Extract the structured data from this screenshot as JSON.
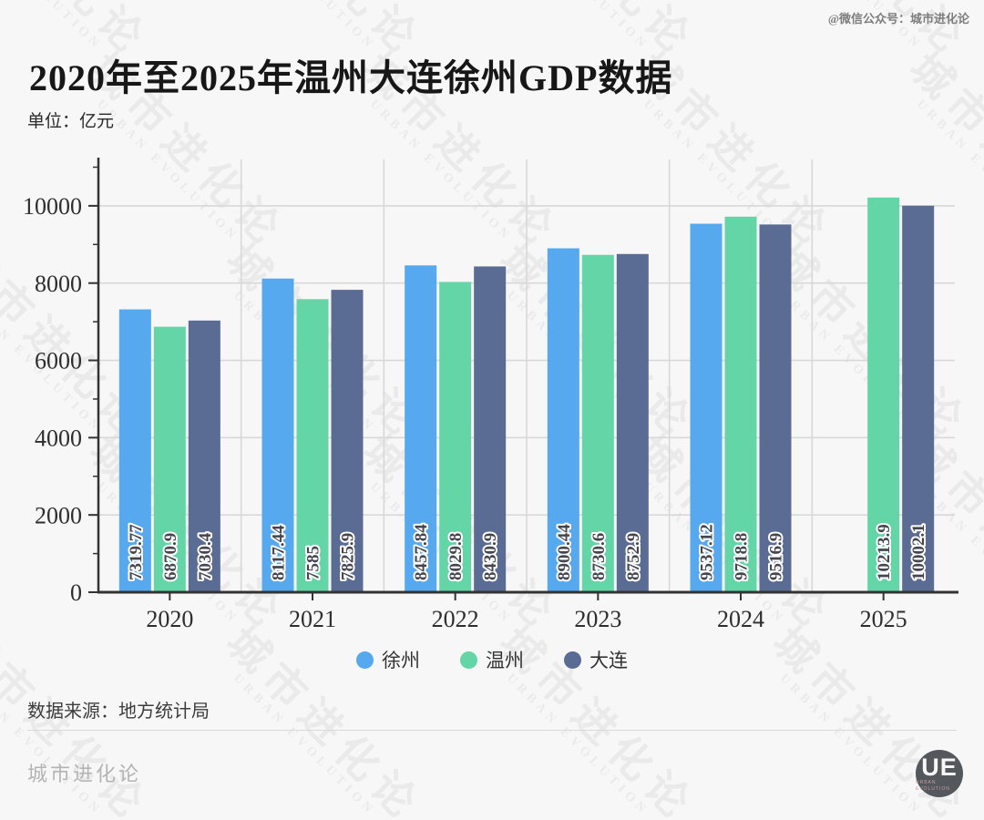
{
  "header": {
    "account_note": "@微信公众号：城市进化论",
    "title": "2020年至2025年温州大连徐州GDP数据",
    "unit_label": "单位：亿元"
  },
  "chart_data": {
    "type": "bar",
    "title": "2020年至2025年温州大连徐州GDP数据",
    "xlabel": "",
    "ylabel": "单位：亿元",
    "categories": [
      "2020",
      "2021",
      "2022",
      "2023",
      "2024",
      "2025"
    ],
    "series": [
      {
        "name": "徐州",
        "color": "#56a9ee",
        "values": [
          7319.77,
          8117.44,
          8457.84,
          8900.44,
          9537.12,
          null
        ]
      },
      {
        "name": "温州",
        "color": "#63d5a6",
        "values": [
          6870.9,
          7585,
          8029.8,
          8730.6,
          9718.8,
          10213.9
        ]
      },
      {
        "name": "大连",
        "color": "#5a6b94",
        "values": [
          7030.4,
          7825.9,
          8430.9,
          8752.9,
          9516.9,
          10002.1
        ]
      }
    ],
    "ylim": [
      0,
      11200
    ],
    "yticks": [
      0,
      2000,
      4000,
      6000,
      8000,
      10000
    ],
    "minor_ytick_interval": 1000,
    "grid": true,
    "legend_position": "bottom",
    "colors": {
      "axis": "#333333",
      "grid": "#d8d8d8",
      "tick_label": "#2e2e2e",
      "bar_label": "#45454f",
      "bar_label_halo": "#ffffff"
    }
  },
  "footer": {
    "source": "数据来源：地方统计局",
    "brand": "城市进化论",
    "logo_text": "UE",
    "logo_subtext": "URBAN EVOLUTION"
  },
  "watermark": {
    "cn": "城市进化论",
    "en": "URBAN EVOLUTION"
  }
}
